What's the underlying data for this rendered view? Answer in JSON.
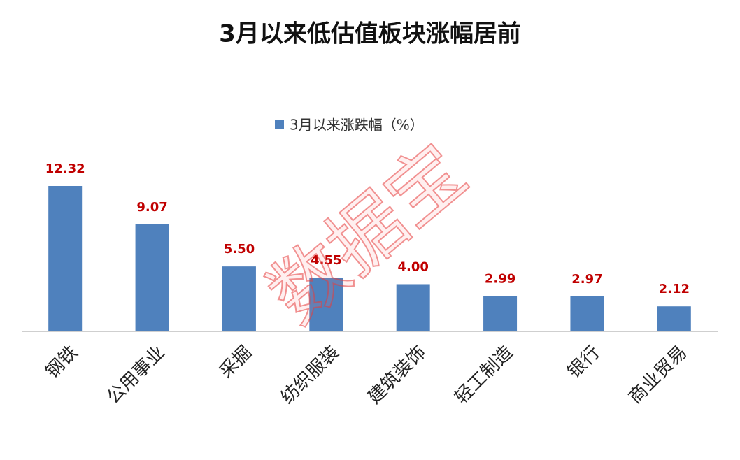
{
  "chart_data": {
    "type": "bar",
    "title": "3月以来低估值板块涨幅居前",
    "categories": [
      "钢铁",
      "公用事业",
      "采掘",
      "纺织服装",
      "建筑装饰",
      "轻工制造",
      "银行",
      "商业贸易"
    ],
    "series": [
      {
        "name": "3月以来涨跌幅（%）",
        "color": "#4f81bd",
        "values": [
          12.32,
          9.07,
          5.5,
          4.55,
          4.0,
          2.99,
          2.97,
          2.12
        ],
        "value_labels": [
          "12.32",
          "9.07",
          "5.50",
          "4.55",
          "4.00",
          "2.99",
          "2.97",
          "2.12"
        ]
      }
    ],
    "legend": "top",
    "watermark": "数据宝"
  }
}
